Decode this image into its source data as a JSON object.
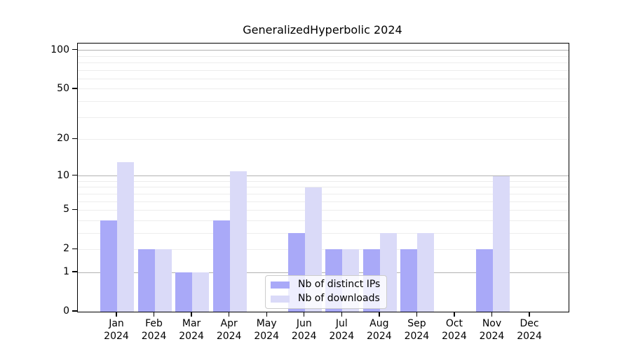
{
  "chart_data": {
    "type": "bar",
    "title": "GeneralizedHyperbolic 2024",
    "xlabel": "",
    "ylabel": "",
    "year_label": "2024",
    "categories": [
      "Jan",
      "Feb",
      "Mar",
      "Apr",
      "May",
      "Jun",
      "Jul",
      "Aug",
      "Sep",
      "Oct",
      "Nov",
      "Dec"
    ],
    "series": [
      {
        "name": "Nb of distinct IPs",
        "color": "#a9a9f8",
        "values": [
          4,
          2,
          1,
          4,
          0,
          3,
          2,
          2,
          2,
          0,
          2,
          0
        ]
      },
      {
        "name": "Nb of downloads",
        "color": "#dadaf8",
        "values": [
          13,
          2,
          1,
          11,
          0,
          8,
          2,
          3,
          3,
          0,
          10,
          0
        ]
      }
    ],
    "yscale": "log1p",
    "ylim": [
      0,
      113
    ],
    "yticks": [
      0,
      1,
      2,
      5,
      10,
      20,
      50,
      100
    ],
    "grid": {
      "major_values": [
        1,
        10,
        100
      ],
      "minor_values": [
        2,
        3,
        4,
        5,
        6,
        7,
        8,
        9,
        20,
        30,
        40,
        50,
        60,
        70,
        80,
        90
      ],
      "major_color": "#b2b2b2",
      "minor_color": "#ededed"
    },
    "legend": {
      "position": "lower center",
      "entries": [
        "Nb of distinct IPs",
        "Nb of downloads"
      ]
    },
    "colors": {
      "ips_bar": "#a9a9f8",
      "downloads_bar": "#dadaf8",
      "axis": "#000000"
    }
  }
}
